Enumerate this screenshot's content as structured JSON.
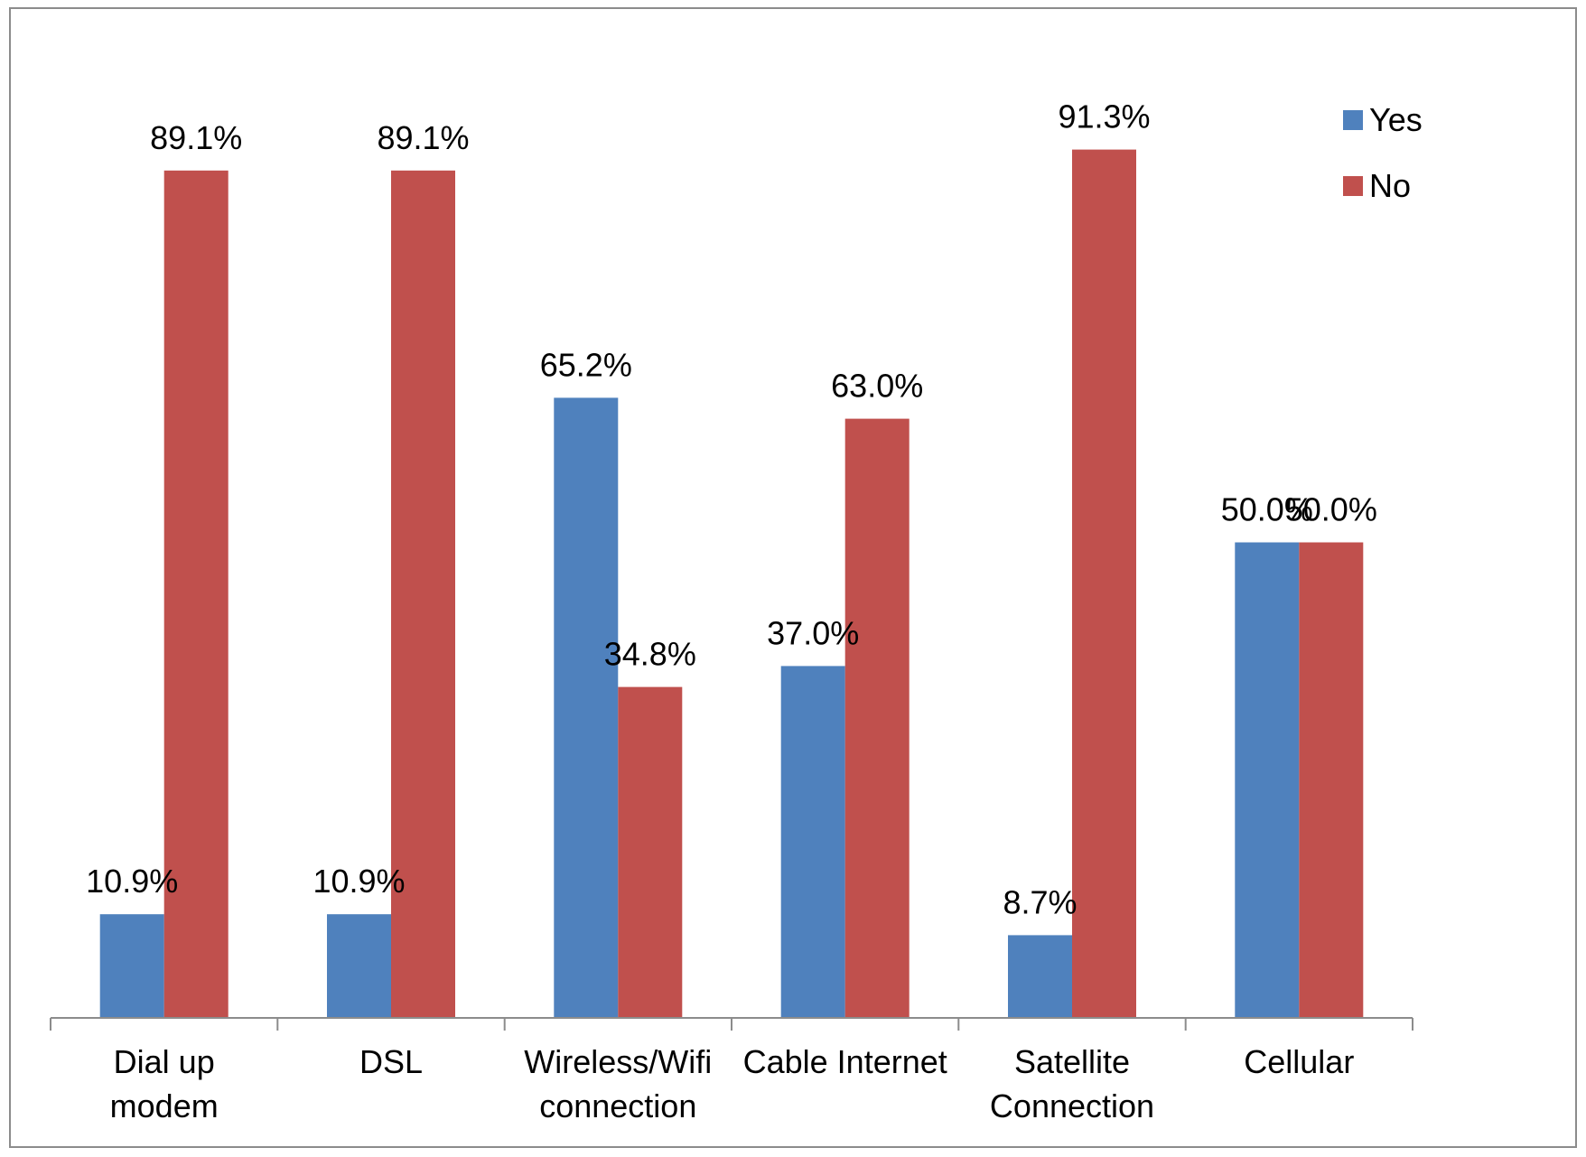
{
  "chart_data": {
    "type": "bar",
    "title": "",
    "xlabel": "",
    "ylabel": "",
    "categories": [
      [
        "Dial up",
        "modem"
      ],
      [
        "DSL"
      ],
      [
        "Wireless/Wifi",
        "connection"
      ],
      [
        "Cable Internet"
      ],
      [
        "Satellite",
        "Connection"
      ],
      [
        "Cellular"
      ]
    ],
    "series": [
      {
        "name": "Yes",
        "color": "#4f81bd",
        "values": [
          10.9,
          10.9,
          65.2,
          37.0,
          8.7,
          50.0
        ],
        "labels": [
          "10.9%",
          "10.9%",
          "65.2%",
          "37.0%",
          "8.7%",
          "50.0%"
        ]
      },
      {
        "name": "No",
        "color": "#c0504d",
        "values": [
          89.1,
          89.1,
          34.8,
          63.0,
          91.3,
          50.0
        ],
        "labels": [
          "89.1%",
          "89.1%",
          "34.8%",
          "63.0%",
          "91.3%",
          "50.0%"
        ]
      }
    ],
    "ylim": [
      0,
      100
    ],
    "grid": false,
    "y_axis_visible": false,
    "legend_position": "top-right",
    "axis_color": "#8c8c8c"
  }
}
